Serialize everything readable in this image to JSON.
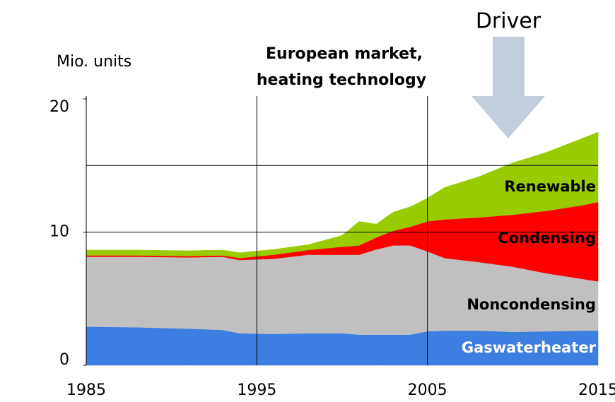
{
  "chart_data": {
    "type": "stacked_area",
    "title": [
      "European market,",
      "heating technology"
    ],
    "y_label": "Mio. units",
    "annotation": "Driver",
    "x": [
      1985,
      1988,
      1991,
      1993,
      1994,
      1996,
      1998,
      2000,
      2001,
      2002,
      2003,
      2004,
      2005,
      2006,
      2008,
      2010,
      2012,
      2014,
      2015
    ],
    "series": [
      {
        "name": "Gaswaterheater",
        "color": "#3d7fe0",
        "label_color": "#ffffff",
        "values": [
          2.9,
          2.85,
          2.75,
          2.65,
          2.4,
          2.35,
          2.4,
          2.4,
          2.3,
          2.3,
          2.3,
          2.3,
          2.55,
          2.6,
          2.6,
          2.5,
          2.55,
          2.6,
          2.6
        ]
      },
      {
        "name": "Noncondensing",
        "color": "#c0c0c0",
        "label_color": "#000000",
        "values": [
          5.25,
          5.3,
          5.35,
          5.5,
          5.5,
          5.65,
          5.9,
          5.9,
          6.0,
          6.4,
          6.7,
          6.7,
          6.0,
          5.45,
          5.15,
          4.9,
          4.35,
          3.9,
          3.7
        ]
      },
      {
        "name": "Condensing",
        "color": "#ff0000",
        "label_color": "#000000",
        "values": [
          0.1,
          0.1,
          0.1,
          0.1,
          0.15,
          0.3,
          0.35,
          0.6,
          0.7,
          0.9,
          1.1,
          1.4,
          2.25,
          2.9,
          3.35,
          3.9,
          4.7,
          5.5,
          5.95
        ]
      },
      {
        "name": "Renewable",
        "color": "#99cc00",
        "label_color": "#000000",
        "values": [
          0.4,
          0.4,
          0.4,
          0.4,
          0.4,
          0.4,
          0.4,
          0.85,
          1.8,
          1.0,
          1.4,
          1.5,
          1.75,
          2.4,
          3.05,
          3.9,
          4.4,
          5.0,
          5.25
        ]
      }
    ],
    "xlim": [
      1985,
      2015
    ],
    "xticks": [
      1985,
      1995,
      2005,
      2015
    ],
    "x_gridlines": [
      1995,
      2005
    ],
    "ylim": [
      0,
      20
    ],
    "yticks": [
      0,
      10,
      20
    ],
    "y_gridlines": [
      10,
      15
    ]
  }
}
